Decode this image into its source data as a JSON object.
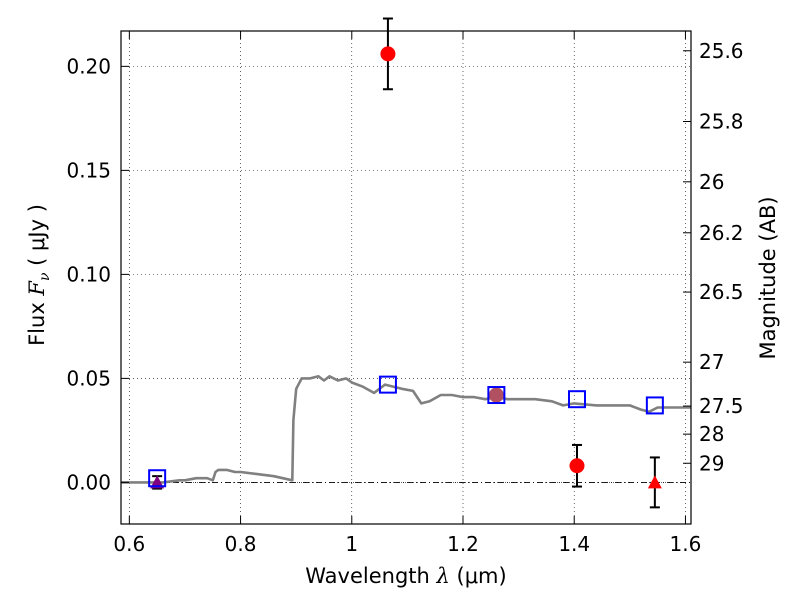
{
  "chart_data": {
    "type": "scatter",
    "title": "",
    "xlabel": {
      "prefix": "Wavelength  ",
      "symbol": "λ",
      "unit": " (μm)"
    },
    "ylabel": {
      "prefix": "Flux  ",
      "symbol": "F",
      "subscript": "ν",
      "unit": "  ( μJy )"
    },
    "ylabel_right": "Magnitude (AB)",
    "xlim": [
      0.585,
      1.61
    ],
    "ylim": [
      -0.02,
      0.217
    ],
    "grid": true,
    "x_ticks": [
      {
        "value": 0.6,
        "label": "0.6"
      },
      {
        "value": 0.8,
        "label": "0.8"
      },
      {
        "value": 1.0,
        "label": "1"
      },
      {
        "value": 1.2,
        "label": "1.2"
      },
      {
        "value": 1.4,
        "label": "1.4"
      },
      {
        "value": 1.6,
        "label": "1.6"
      }
    ],
    "y_ticks": [
      {
        "value": 0.0,
        "label": "0.00"
      },
      {
        "value": 0.05,
        "label": "0.05"
      },
      {
        "value": 0.1,
        "label": "0.10"
      },
      {
        "value": 0.15,
        "label": "0.15"
      },
      {
        "value": 0.2,
        "label": "0.20"
      }
    ],
    "mag_ticks": [
      {
        "flux": 0.2075,
        "label": "25.6"
      },
      {
        "flux": 0.1735,
        "label": "25.8"
      },
      {
        "flux": 0.1445,
        "label": "26"
      },
      {
        "flux": 0.12,
        "label": "26.2"
      },
      {
        "flux": 0.0915,
        "label": "26.5"
      },
      {
        "flux": 0.0578,
        "label": "27"
      },
      {
        "flux": 0.0367,
        "label": "27.5"
      },
      {
        "flux": 0.0232,
        "label": "28"
      },
      {
        "flux": 0.0092,
        "label": "29"
      }
    ],
    "series": [
      {
        "kind": "model_sed",
        "color": "#808080",
        "x": [
          0.585,
          0.64,
          0.66,
          0.69,
          0.7,
          0.72,
          0.74,
          0.75,
          0.755,
          0.76,
          0.775,
          0.79,
          0.8,
          0.83,
          0.86,
          0.893,
          0.895,
          0.9,
          0.91,
          0.925,
          0.94,
          0.95,
          0.96,
          0.975,
          0.99,
          1.0,
          1.02,
          1.04,
          1.06,
          1.075,
          1.09,
          1.11,
          1.125,
          1.14,
          1.16,
          1.18,
          1.2,
          1.22,
          1.24,
          1.26,
          1.28,
          1.3,
          1.33,
          1.36,
          1.38,
          1.4,
          1.44,
          1.46,
          1.5,
          1.52,
          1.535,
          1.55,
          1.58,
          1.61
        ],
        "y": [
          0.0,
          0.0,
          0.0,
          0.001,
          0.001,
          0.002,
          0.002,
          0.001,
          0.005,
          0.006,
          0.006,
          0.005,
          0.005,
          0.004,
          0.003,
          0.001,
          0.03,
          0.045,
          0.05,
          0.05,
          0.051,
          0.049,
          0.051,
          0.049,
          0.05,
          0.048,
          0.046,
          0.043,
          0.047,
          0.046,
          0.045,
          0.044,
          0.038,
          0.039,
          0.042,
          0.042,
          0.041,
          0.041,
          0.04,
          0.041,
          0.04,
          0.04,
          0.04,
          0.039,
          0.037,
          0.038,
          0.037,
          0.037,
          0.037,
          0.035,
          0.034,
          0.036,
          0.036,
          0.036
        ]
      },
      {
        "kind": "model_photometry",
        "marker": "square",
        "color": "#0000ff",
        "x": [
          0.65,
          1.065,
          1.26,
          1.405,
          1.545
        ],
        "y": [
          0.002,
          0.047,
          0.042,
          0.04,
          0.037
        ]
      },
      {
        "kind": "detections",
        "marker": "circle",
        "color": "#ff0000",
        "x": [
          1.065,
          1.26,
          1.405
        ],
        "y": [
          0.206,
          0.042,
          0.008
        ],
        "yerr": [
          0.017,
          null,
          0.01
        ]
      },
      {
        "kind": "upper_limits",
        "marker": "triangle",
        "color": "#ff0000",
        "x": [
          0.65,
          1.545
        ],
        "y": [
          0.0,
          0.0
        ],
        "yerr": [
          0.003,
          0.012
        ]
      }
    ]
  },
  "colors": {
    "sed": "#808080",
    "model_square": "#0000ff",
    "detection": "#ff0000",
    "overlap_square": "#b05060",
    "upper_limit_overlap": "#800080",
    "errorbar": "#000000"
  }
}
